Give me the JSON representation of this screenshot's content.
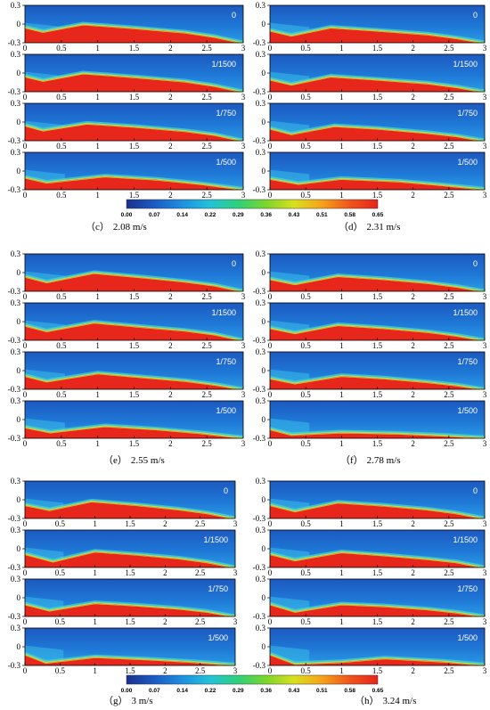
{
  "y_ticks": [
    "0.3",
    "0",
    "-0.3"
  ],
  "x_ticks": [
    "0",
    "0.5",
    "1",
    "1.5",
    "2",
    "2.5",
    "3"
  ],
  "colorbar": {
    "ticks": [
      "0.00",
      "0.07",
      "0.14",
      "0.22",
      "0.29",
      "0.36",
      "0.43",
      "0.51",
      "0.58",
      "0.65"
    ],
    "stops": [
      "#1c2f8c",
      "#1a5cc4",
      "#1e8fe0",
      "#22c3d8",
      "#2fd07a",
      "#7cd62a",
      "#d8e01e",
      "#f5a21a",
      "#f0541a",
      "#e4261c"
    ]
  },
  "colors": {
    "background_field": "#1766c8",
    "ground": "#e8271c",
    "interface": "#7fe0b0"
  },
  "groups": [
    {
      "caption_letter": "（c）",
      "caption_value": "2.08 m/s",
      "panels": [
        {
          "label": "0",
          "profile": [
            [
              0,
              -0.05
            ],
            [
              0.25,
              -0.12
            ],
            [
              0.8,
              0.0
            ],
            [
              1.5,
              -0.06
            ],
            [
              2.2,
              -0.13
            ],
            [
              2.6,
              -0.2
            ],
            [
              3,
              -0.3
            ]
          ],
          "jet": 0.05
        },
        {
          "label": "1/1500",
          "profile": [
            [
              0,
              -0.05
            ],
            [
              0.25,
              -0.12
            ],
            [
              0.8,
              0.0
            ],
            [
              1.5,
              -0.06
            ],
            [
              2.2,
              -0.13
            ],
            [
              2.6,
              -0.2
            ],
            [
              3,
              -0.3
            ]
          ],
          "jet": 0.05
        },
        {
          "label": "1/750",
          "profile": [
            [
              0,
              -0.05
            ],
            [
              0.25,
              -0.13
            ],
            [
              0.85,
              -0.02
            ],
            [
              1.5,
              -0.07
            ],
            [
              2.2,
              -0.14
            ],
            [
              2.6,
              -0.2
            ],
            [
              3,
              -0.3
            ]
          ],
          "jet": 0.08
        },
        {
          "label": "1/500",
          "profile": [
            [
              0,
              -0.1
            ],
            [
              0.3,
              -0.18
            ],
            [
              1.1,
              -0.08
            ],
            [
              1.8,
              -0.13
            ],
            [
              2.4,
              -0.2
            ],
            [
              3,
              -0.29
            ]
          ],
          "jet": 0.12
        }
      ]
    },
    {
      "caption_letter": "（d）",
      "caption_value": "2.31 m/s",
      "panels": [
        {
          "label": "0",
          "profile": [
            [
              0,
              -0.1
            ],
            [
              0.3,
              -0.18
            ],
            [
              0.85,
              -0.05
            ],
            [
              1.5,
              -0.1
            ],
            [
              2.2,
              -0.16
            ],
            [
              2.6,
              -0.22
            ],
            [
              3,
              -0.3
            ]
          ],
          "jet": 0.08
        },
        {
          "label": "1/1500",
          "profile": [
            [
              0,
              -0.1
            ],
            [
              0.3,
              -0.18
            ],
            [
              0.85,
              -0.05
            ],
            [
              1.5,
              -0.1
            ],
            [
              2.2,
              -0.16
            ],
            [
              2.6,
              -0.22
            ],
            [
              3,
              -0.3
            ]
          ],
          "jet": 0.08
        },
        {
          "label": "1/750",
          "profile": [
            [
              0,
              -0.1
            ],
            [
              0.3,
              -0.19
            ],
            [
              0.9,
              -0.06
            ],
            [
              1.5,
              -0.1
            ],
            [
              2.2,
              -0.17
            ],
            [
              2.6,
              -0.22
            ],
            [
              3,
              -0.3
            ]
          ],
          "jet": 0.1
        },
        {
          "label": "1/500",
          "profile": [
            [
              0,
              -0.12
            ],
            [
              0.4,
              -0.2
            ],
            [
              1.0,
              -0.12
            ],
            [
              1.8,
              -0.16
            ],
            [
              2.4,
              -0.22
            ],
            [
              3,
              -0.29
            ]
          ],
          "jet": 0.15
        }
      ]
    },
    {
      "caption_letter": "（e）",
      "caption_value": "2.55 m/s",
      "panels": [
        {
          "label": "0",
          "profile": [
            [
              0,
              -0.06
            ],
            [
              0.3,
              -0.15
            ],
            [
              0.95,
              0.0
            ],
            [
              1.6,
              -0.07
            ],
            [
              2.2,
              -0.14
            ],
            [
              2.6,
              -0.2
            ],
            [
              3,
              -0.3
            ]
          ],
          "jet": 0.06
        },
        {
          "label": "1/1500",
          "profile": [
            [
              0,
              -0.06
            ],
            [
              0.3,
              -0.15
            ],
            [
              0.95,
              -0.01
            ],
            [
              1.6,
              -0.08
            ],
            [
              2.2,
              -0.14
            ],
            [
              2.6,
              -0.2
            ],
            [
              3,
              -0.3
            ]
          ],
          "jet": 0.07
        },
        {
          "label": "1/750",
          "profile": [
            [
              0,
              -0.08
            ],
            [
              0.3,
              -0.17
            ],
            [
              1.0,
              -0.04
            ],
            [
              1.6,
              -0.1
            ],
            [
              2.2,
              -0.16
            ],
            [
              2.6,
              -0.22
            ],
            [
              3,
              -0.3
            ]
          ],
          "jet": 0.1
        },
        {
          "label": "1/500",
          "profile": [
            [
              0,
              -0.12
            ],
            [
              0.35,
              -0.2
            ],
            [
              1.1,
              -0.1
            ],
            [
              1.8,
              -0.15
            ],
            [
              2.4,
              -0.21
            ],
            [
              3,
              -0.29
            ]
          ],
          "jet": 0.14
        }
      ]
    },
    {
      "caption_letter": "（f）",
      "caption_value": "2.78 m/s",
      "panels": [
        {
          "label": "0",
          "profile": [
            [
              0,
              -0.1
            ],
            [
              0.35,
              -0.18
            ],
            [
              0.95,
              -0.05
            ],
            [
              1.6,
              -0.1
            ],
            [
              2.2,
              -0.16
            ],
            [
              2.6,
              -0.22
            ],
            [
              3,
              -0.3
            ]
          ],
          "jet": 0.08
        },
        {
          "label": "1/1500",
          "profile": [
            [
              0,
              -0.1
            ],
            [
              0.35,
              -0.18
            ],
            [
              0.95,
              -0.05
            ],
            [
              1.6,
              -0.1
            ],
            [
              2.2,
              -0.16
            ],
            [
              2.6,
              -0.22
            ],
            [
              3,
              -0.3
            ]
          ],
          "jet": 0.08
        },
        {
          "label": "1/750",
          "profile": [
            [
              0,
              -0.12
            ],
            [
              0.35,
              -0.2
            ],
            [
              1.0,
              -0.08
            ],
            [
              1.6,
              -0.12
            ],
            [
              2.2,
              -0.18
            ],
            [
              2.6,
              -0.23
            ],
            [
              3,
              -0.3
            ]
          ],
          "jet": 0.12
        },
        {
          "label": "1/500",
          "profile": [
            [
              0,
              -0.15
            ],
            [
              0.3,
              -0.24
            ],
            [
              1.0,
              -0.2
            ],
            [
              1.8,
              -0.22
            ],
            [
              2.4,
              -0.25
            ],
            [
              3,
              -0.29
            ]
          ],
          "jet": 0.18
        }
      ]
    },
    {
      "caption_letter": "（g）",
      "caption_value": "3 m/s",
      "panels": [
        {
          "label": "0",
          "profile": [
            [
              0,
              -0.08
            ],
            [
              0.35,
              -0.16
            ],
            [
              0.95,
              -0.02
            ],
            [
              1.6,
              -0.08
            ],
            [
              2.2,
              -0.15
            ],
            [
              2.6,
              -0.21
            ],
            [
              3,
              -0.3
            ]
          ],
          "jet": 0.08
        },
        {
          "label": "1/1500",
          "profile": [
            [
              0,
              -0.08
            ],
            [
              0.4,
              -0.2
            ],
            [
              1.0,
              -0.04
            ],
            [
              1.6,
              -0.09
            ],
            [
              2.2,
              -0.15
            ],
            [
              2.6,
              -0.21
            ],
            [
              3,
              -0.3
            ]
          ],
          "jet": 0.1
        },
        {
          "label": "1/750",
          "profile": [
            [
              0,
              -0.1
            ],
            [
              0.35,
              -0.2
            ],
            [
              1.0,
              -0.08
            ],
            [
              1.6,
              -0.12
            ],
            [
              2.2,
              -0.17
            ],
            [
              2.6,
              -0.22
            ],
            [
              3,
              -0.3
            ]
          ],
          "jet": 0.12
        },
        {
          "label": "1/500",
          "profile": [
            [
              0,
              -0.12
            ],
            [
              0.3,
              -0.25
            ],
            [
              1.0,
              -0.16
            ],
            [
              1.8,
              -0.2
            ],
            [
              2.4,
              -0.24
            ],
            [
              3,
              -0.29
            ]
          ],
          "jet": 0.2
        }
      ]
    },
    {
      "caption_letter": "（h）",
      "caption_value": "3.24 m/s",
      "panels": [
        {
          "label": "0",
          "profile": [
            [
              0,
              -0.08
            ],
            [
              0.35,
              -0.18
            ],
            [
              0.95,
              -0.04
            ],
            [
              1.6,
              -0.09
            ],
            [
              2.2,
              -0.15
            ],
            [
              2.6,
              -0.21
            ],
            [
              3,
              -0.3
            ]
          ],
          "jet": 0.1
        },
        {
          "label": "1/1500",
          "profile": [
            [
              0,
              -0.08
            ],
            [
              0.35,
              -0.18
            ],
            [
              1.0,
              -0.05
            ],
            [
              1.6,
              -0.1
            ],
            [
              2.2,
              -0.16
            ],
            [
              2.6,
              -0.21
            ],
            [
              3,
              -0.3
            ]
          ],
          "jet": 0.1
        },
        {
          "label": "1/750",
          "profile": [
            [
              0,
              -0.1
            ],
            [
              0.35,
              -0.22
            ],
            [
              1.0,
              -0.1
            ],
            [
              1.6,
              -0.13
            ],
            [
              2.2,
              -0.18
            ],
            [
              2.6,
              -0.23
            ],
            [
              3,
              -0.3
            ]
          ],
          "jet": 0.14
        },
        {
          "label": "1/500",
          "profile": [
            [
              0,
              -0.12
            ],
            [
              0.35,
              -0.27
            ],
            [
              1.0,
              -0.24
            ],
            [
              1.6,
              -0.18
            ],
            [
              2.4,
              -0.23
            ],
            [
              3,
              -0.29
            ]
          ],
          "jet": 0.22
        }
      ]
    }
  ]
}
